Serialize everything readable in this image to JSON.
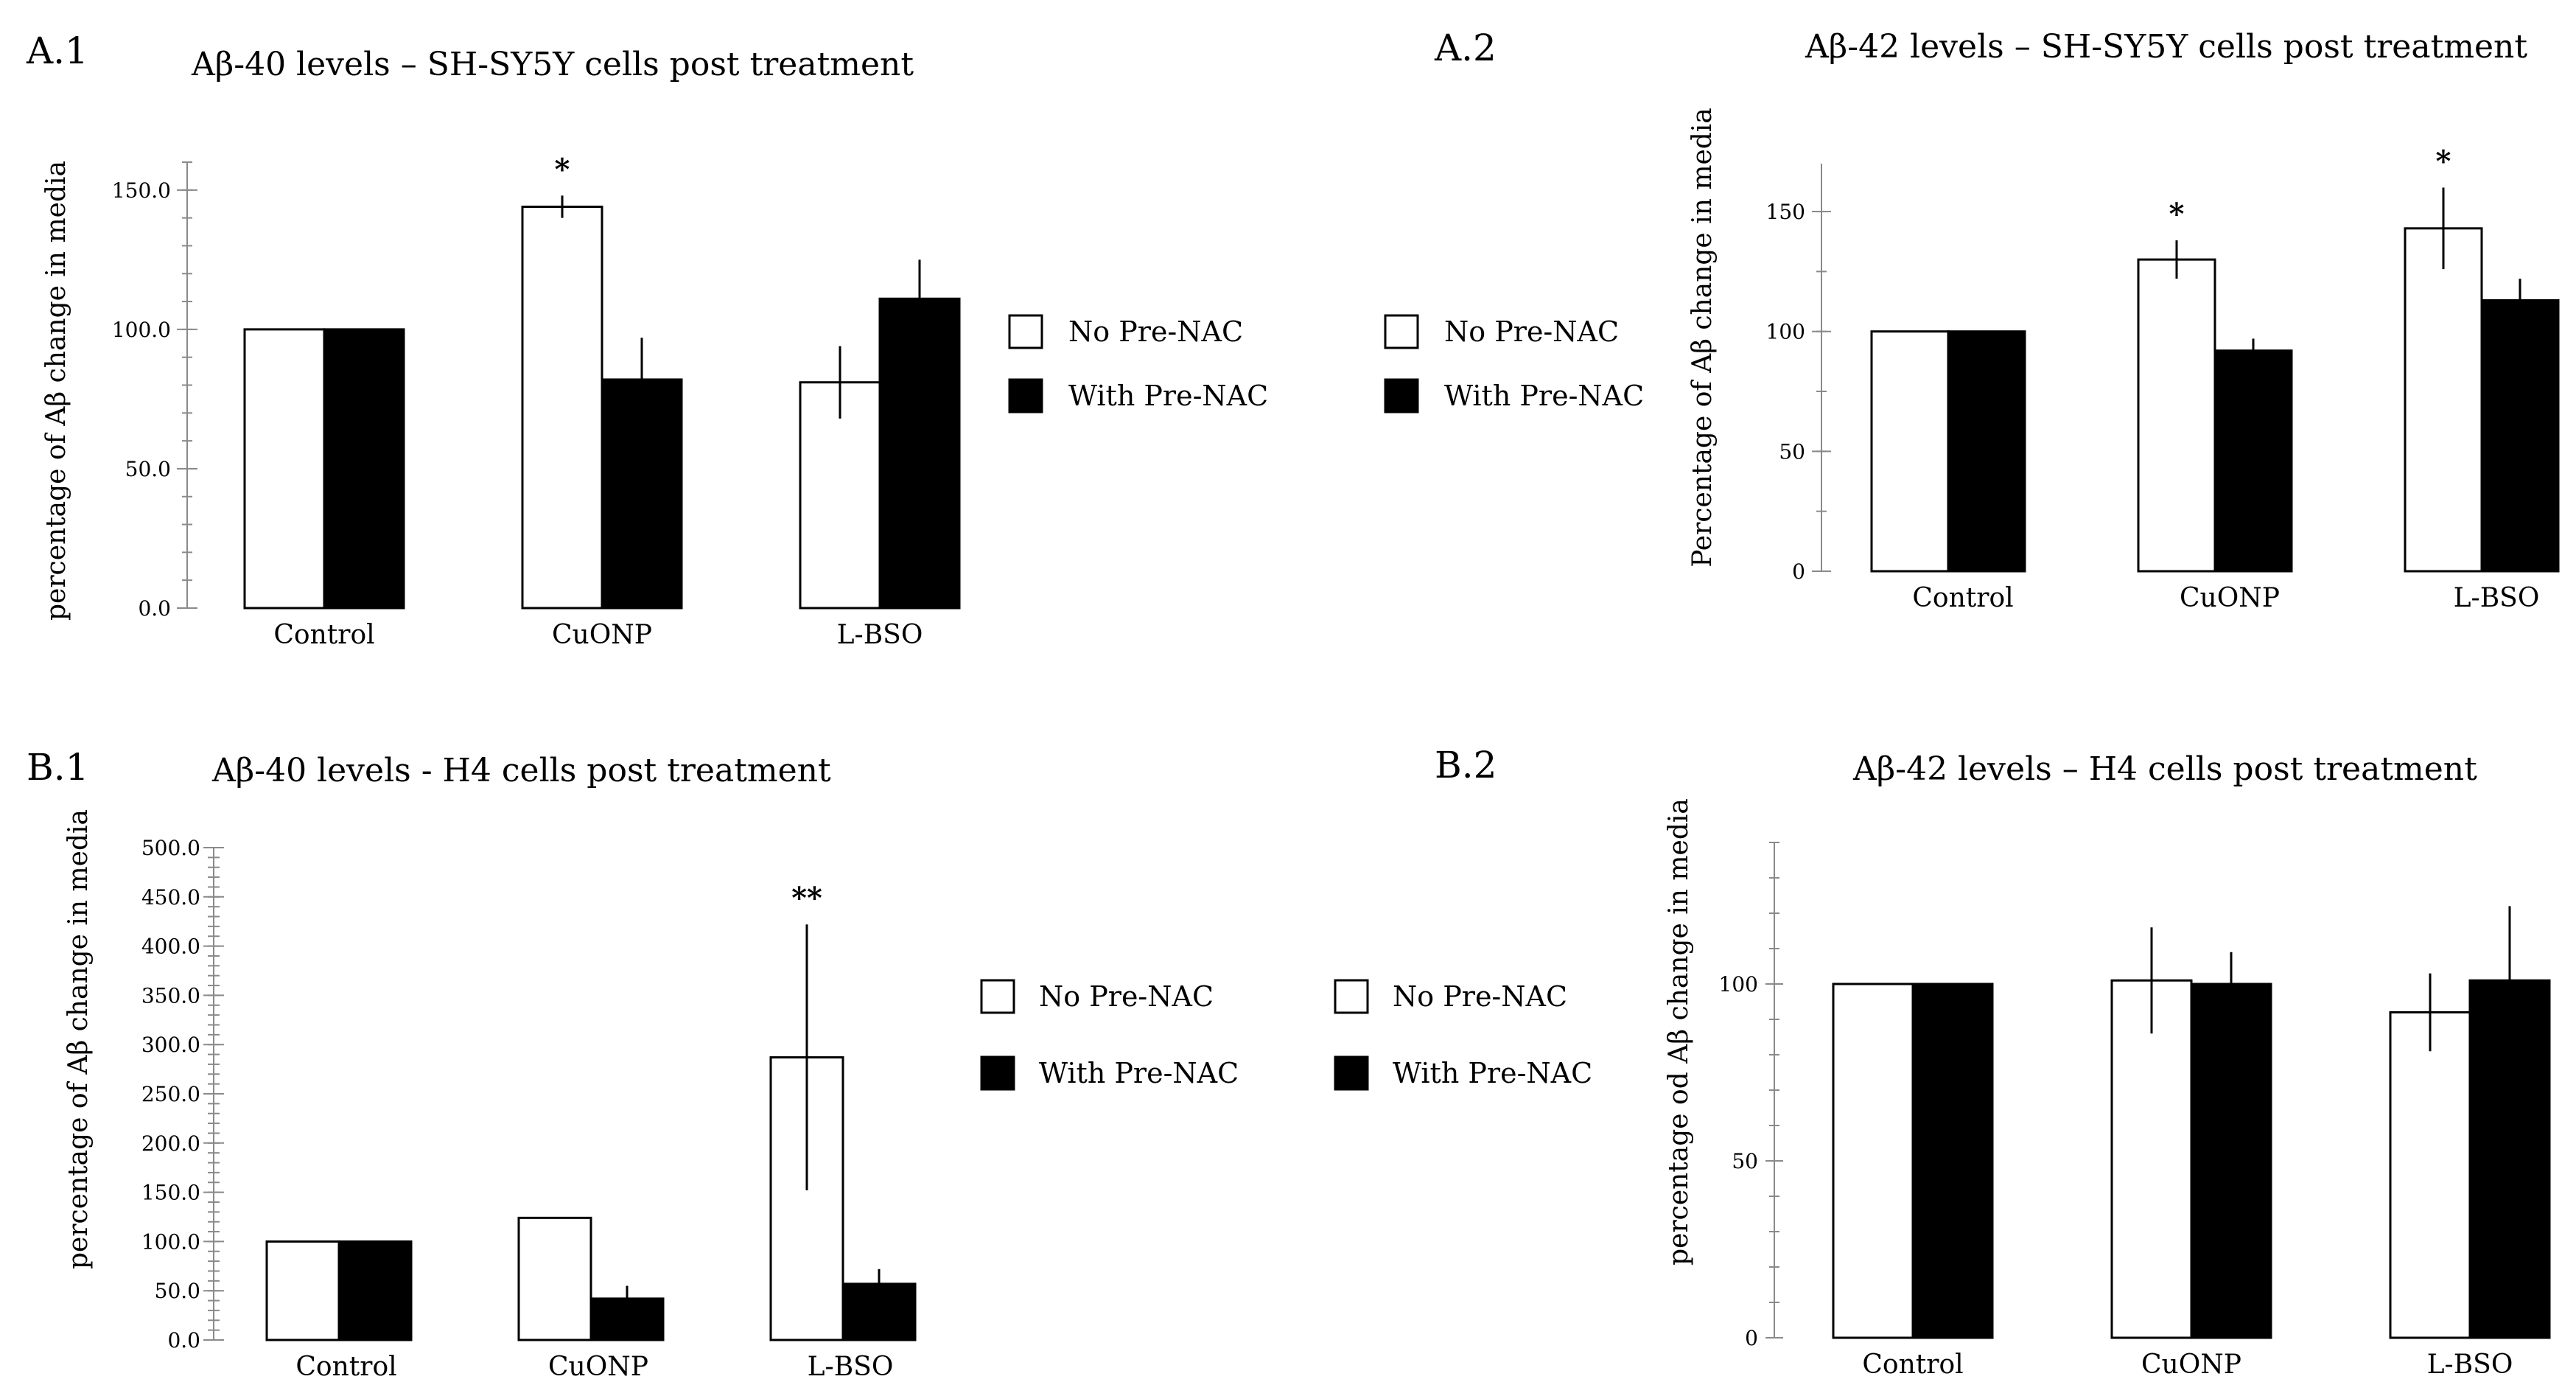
{
  "figure": {
    "panels": [
      {
        "id": "A1",
        "letter": "A.1"
      },
      {
        "id": "A2",
        "letter": "A.2"
      },
      {
        "id": "B1",
        "letter": "B.1"
      },
      {
        "id": "B2",
        "letter": "B.2"
      }
    ]
  },
  "colors": {
    "no_pre_nac": "#ffffff",
    "with_pre_nac": "#000000",
    "stroke": "#000000",
    "axis": "#8a8a8a"
  },
  "chart_data": [
    {
      "id": "A1",
      "type": "bar",
      "title": "Aβ-40 levels – SH-SY5Y cells post treatment",
      "xlabel": "",
      "ylabel": "percentage of Aβ change in media",
      "categories": [
        "Control",
        "CuONP",
        "L-BSO"
      ],
      "series": [
        {
          "name": "No Pre-NAC",
          "values": [
            100,
            144,
            81
          ],
          "errors": [
            0,
            4,
            13
          ]
        },
        {
          "name": "With Pre-NAC",
          "values": [
            100,
            82,
            111
          ],
          "errors": [
            0,
            15,
            14
          ]
        }
      ],
      "significance": [
        {
          "category_index": 1,
          "series_index": 0,
          "label": "*"
        }
      ],
      "ylim": [
        0,
        160
      ],
      "yticks": [
        0,
        50,
        100,
        150
      ],
      "ytick_labels": [
        "0.0",
        "50.0",
        "100.0",
        "150.0"
      ],
      "minor_tick_step": 10,
      "legend": [
        {
          "label": "No Pre-NAC"
        },
        {
          "label": "With Pre-NAC"
        }
      ],
      "grid": false
    },
    {
      "id": "A2",
      "type": "bar",
      "title": "Aβ-42 levels – SH-SY5Y cells post treatment",
      "xlabel": "",
      "ylabel": "Percentage of Aβ change in media",
      "categories": [
        "Control",
        "CuONP",
        "L-BSO"
      ],
      "series": [
        {
          "name": "No Pre-NAC",
          "values": [
            100,
            130,
            143
          ],
          "errors": [
            0,
            8,
            17
          ]
        },
        {
          "name": "With Pre-NAC",
          "values": [
            100,
            92,
            113
          ],
          "errors": [
            0,
            5,
            9
          ]
        }
      ],
      "significance": [
        {
          "category_index": 1,
          "series_index": 0,
          "label": "*"
        },
        {
          "category_index": 2,
          "series_index": 0,
          "label": "*"
        }
      ],
      "ylim": [
        0,
        170
      ],
      "yticks": [
        0,
        50,
        100,
        150
      ],
      "ytick_labels": [
        "0",
        "50",
        "100",
        "150"
      ],
      "minor_tick_step": 25,
      "legend": [
        {
          "label": "No Pre-NAC"
        },
        {
          "label": "With Pre-NAC"
        }
      ],
      "grid": false
    },
    {
      "id": "B1",
      "type": "bar",
      "title": "Aβ-40 levels - H4 cells post treatment",
      "xlabel": "",
      "ylabel": "percentage of Aβ change in media",
      "categories": [
        "Control",
        "CuONP",
        "L-BSO"
      ],
      "series": [
        {
          "name": "No Pre-NAC",
          "values": [
            100,
            124,
            287
          ],
          "errors": [
            0,
            0,
            135
          ]
        },
        {
          "name": "With Pre-NAC",
          "values": [
            100,
            42,
            57
          ],
          "errors": [
            0,
            13,
            15
          ]
        }
      ],
      "significance": [
        {
          "category_index": 2,
          "series_index": 0,
          "label": "**"
        }
      ],
      "ylim": [
        0,
        500
      ],
      "yticks": [
        0,
        50,
        100,
        150,
        200,
        250,
        300,
        350,
        400,
        450,
        500
      ],
      "ytick_labels": [
        "0.0",
        "50.0",
        "100.0",
        "150.0",
        "200.0",
        "250.0",
        "300.0",
        "350.0",
        "400.0",
        "450.0",
        "500.0"
      ],
      "minor_tick_step": 10,
      "legend": [
        {
          "label": "No Pre-NAC"
        },
        {
          "label": "With Pre-NAC"
        }
      ],
      "grid": false
    },
    {
      "id": "B2",
      "type": "bar",
      "title": "Aβ-42 levels – H4 cells post treatment",
      "xlabel": "",
      "ylabel": "percentage od Aβ change  in media",
      "categories": [
        "Control",
        "CuONP",
        "L-BSO"
      ],
      "series": [
        {
          "name": "No Pre-NAC",
          "values": [
            100,
            101,
            92
          ],
          "errors": [
            0,
            15,
            11
          ]
        },
        {
          "name": "With Pre-NAC",
          "values": [
            100,
            100,
            101
          ],
          "errors": [
            0,
            9,
            21
          ]
        }
      ],
      "significance": [],
      "ylim": [
        0,
        140
      ],
      "yticks": [
        0,
        50,
        100
      ],
      "ytick_labels": [
        "0",
        "50",
        "100"
      ],
      "minor_tick_step": 10,
      "legend": [],
      "grid": false
    }
  ]
}
